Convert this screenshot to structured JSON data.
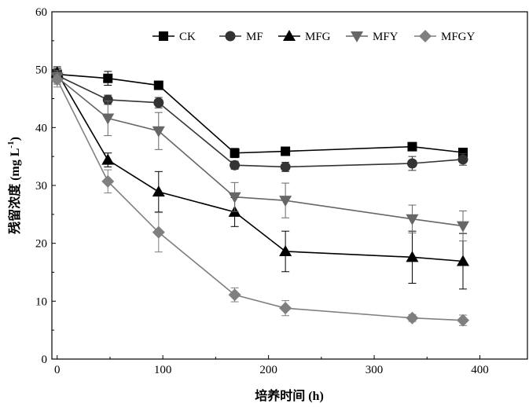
{
  "chart_data": {
    "type": "line",
    "title": "",
    "xlabel": "培养时间 (h)",
    "ylabel": "残留浓度 (mg L",
    "ylabel_sup": "-1",
    "ylabel_tail": ")",
    "xlim": [
      -5,
      445
    ],
    "ylim": [
      0,
      60
    ],
    "xticks": [
      0,
      100,
      200,
      300,
      400
    ],
    "yticks": [
      0,
      10,
      20,
      30,
      40,
      50,
      60
    ],
    "legend_position": "top-right",
    "x": [
      0,
      48,
      96,
      168,
      216,
      336,
      384
    ],
    "series": [
      {
        "name": "CK",
        "marker": "square",
        "color": "#000000",
        "values": [
          49.2,
          48.5,
          47.3,
          35.6,
          35.9,
          36.7,
          35.7
        ],
        "errors": [
          1.0,
          1.2,
          0.7,
          0.8,
          0.6,
          0.7,
          0.6
        ]
      },
      {
        "name": "MF",
        "marker": "circle",
        "color": "#333333",
        "values": [
          49.0,
          44.8,
          44.3,
          33.5,
          33.2,
          33.8,
          34.5
        ],
        "errors": [
          1.2,
          0.8,
          0.9,
          0.7,
          0.8,
          1.2,
          1.0
        ]
      },
      {
        "name": "MFG",
        "marker": "triangle-up",
        "color": "#000000",
        "values": [
          49.5,
          34.4,
          28.9,
          25.4,
          18.6,
          17.6,
          16.9
        ],
        "errors": [
          1.0,
          1.2,
          3.5,
          2.5,
          3.5,
          4.5,
          4.8
        ]
      },
      {
        "name": "MFY",
        "marker": "triangle-down",
        "color": "#666666",
        "values": [
          48.7,
          41.6,
          39.4,
          28.0,
          27.4,
          24.2,
          23.0
        ],
        "errors": [
          1.2,
          3.0,
          3.2,
          2.5,
          3.0,
          2.4,
          2.6
        ]
      },
      {
        "name": "MFGY",
        "marker": "diamond",
        "color": "#7f7f7f",
        "values": [
          48.3,
          30.7,
          21.9,
          11.1,
          8.8,
          7.1,
          6.7
        ],
        "errors": [
          1.3,
          2.0,
          3.4,
          1.2,
          1.3,
          0.6,
          0.9
        ]
      }
    ]
  }
}
